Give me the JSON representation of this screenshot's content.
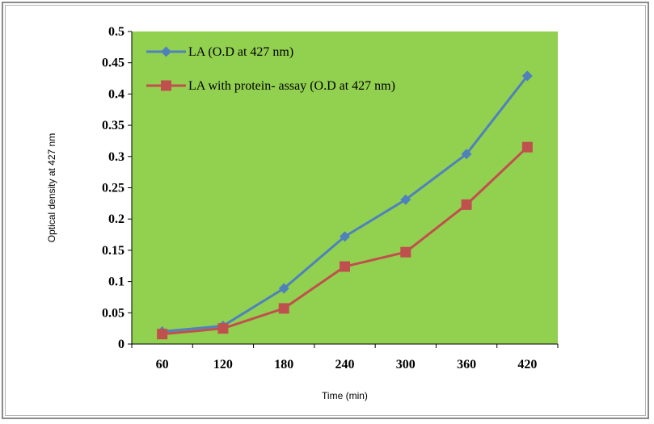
{
  "chart_data": {
    "type": "line",
    "title": "",
    "xlabel": "Time (min)",
    "ylabel": "Optical density at 427 nm",
    "categories": [
      "60",
      "120",
      "180",
      "240",
      "300",
      "360",
      "420"
    ],
    "ylim": [
      0,
      0.5
    ],
    "yticks": [
      "0",
      "0.05",
      "0.1",
      "0.15",
      "0.2",
      "0.25",
      "0.3",
      "0.35",
      "0.4",
      "0.45",
      "0.5"
    ],
    "grid": false,
    "legend_position": "top-left",
    "plot_background": "#92d050",
    "series": [
      {
        "name": "LA (O.D  at 427 nm)",
        "marker": "diamond",
        "color": "#4f81bd",
        "values": [
          0.02,
          0.029,
          0.089,
          0.172,
          0.231,
          0.304,
          0.429
        ]
      },
      {
        "name": "LA with protein-  assay (O.D at  427 nm)",
        "marker": "square",
        "color": "#c0504d",
        "values": [
          0.016,
          0.025,
          0.057,
          0.124,
          0.147,
          0.223,
          0.315
        ]
      }
    ]
  }
}
